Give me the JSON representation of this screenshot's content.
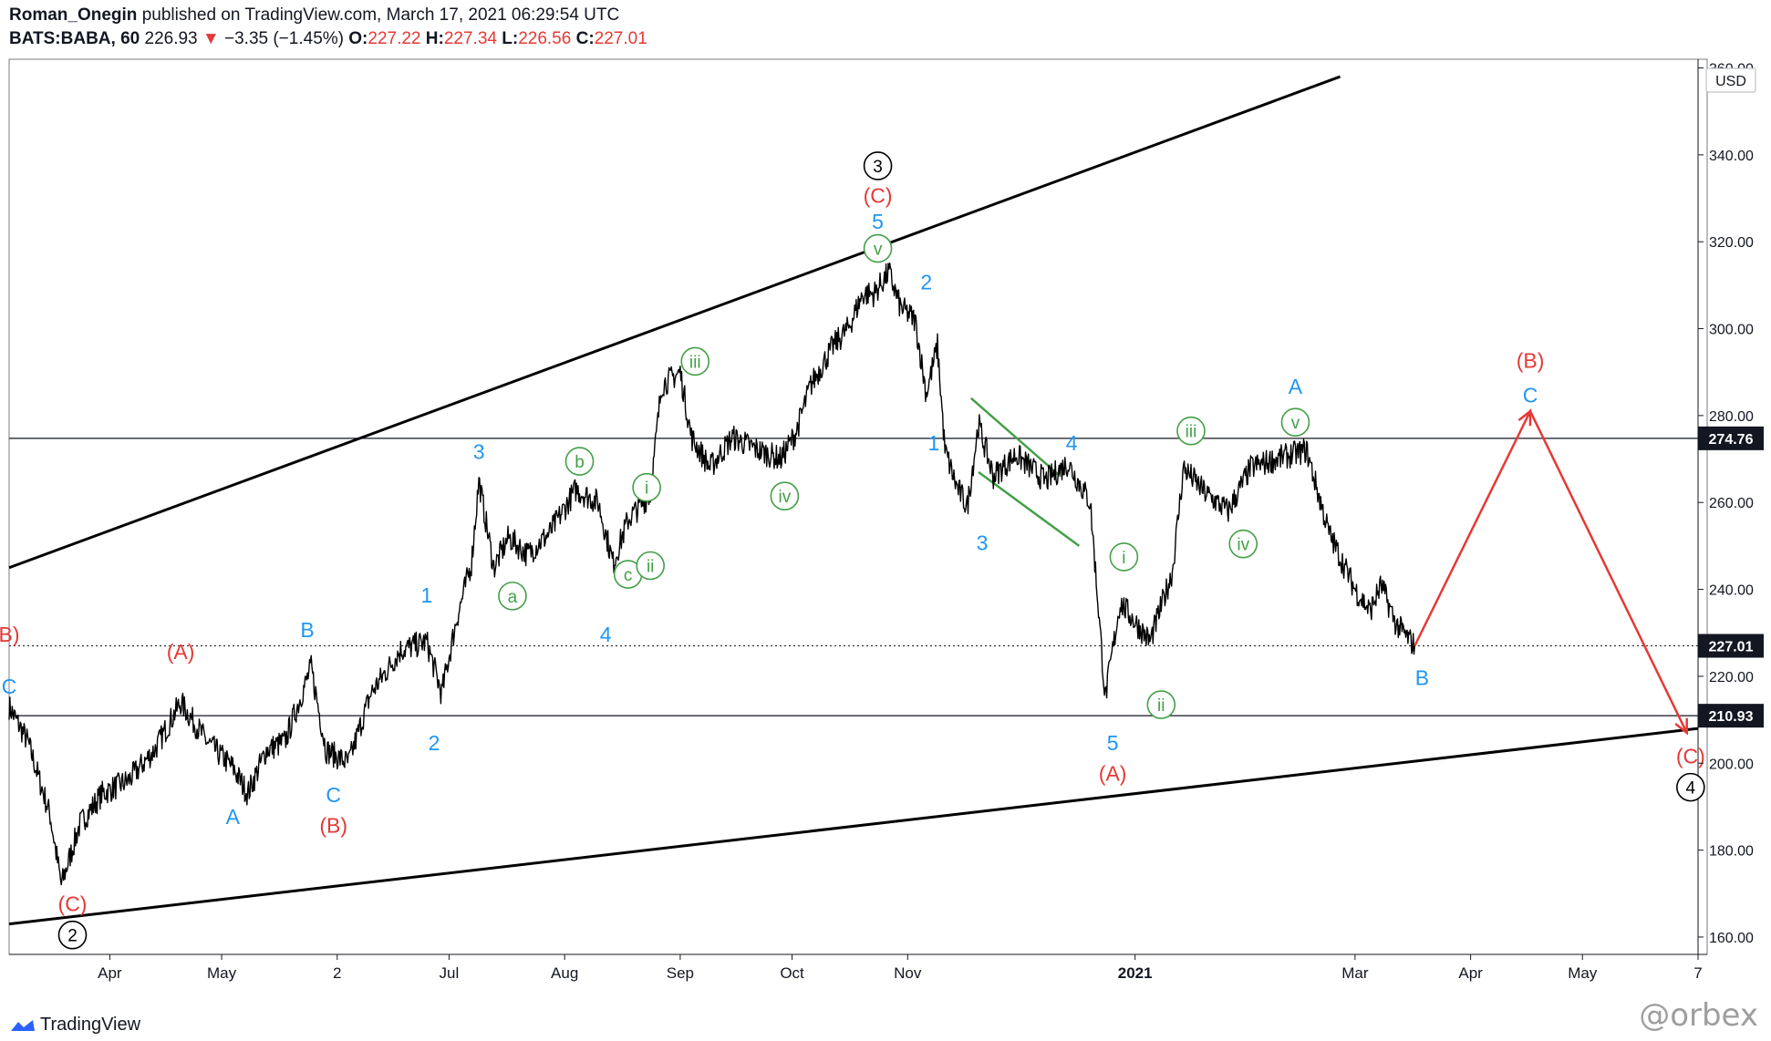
{
  "header": {
    "author": "Roman_Onegin",
    "published_text": "published on TradingView.com, March 17, 2021 06:29:54 UTC",
    "symbol": "BATS:BABA, 60",
    "last": "226.93",
    "change": "−3.35 (−1.45%)",
    "o_label": "O:",
    "o": "227.22",
    "h_label": "H:",
    "h": "227.34",
    "l_label": "L:",
    "l": "226.56",
    "c_label": "C:",
    "c": "227.01"
  },
  "footer": {
    "brand": "TradingView",
    "watermark": "@orbex"
  },
  "colors": {
    "red": "#e53935",
    "blue": "#2196f3",
    "green": "#43a047",
    "black": "#000000"
  },
  "chart_data": {
    "type": "line",
    "currency": "USD",
    "y_ticks": [
      160,
      180,
      200,
      220,
      240,
      260,
      280,
      300,
      320,
      340,
      360
    ],
    "y_tick_labels": [
      "160.00",
      "180.00",
      "200.00",
      "220.00",
      "240.00",
      "260.00",
      "280.00",
      "300.00",
      "320.00",
      "340.00",
      "360.00"
    ],
    "ylim": [
      156,
      362
    ],
    "x_ticks": [
      "Apr",
      "May",
      "2",
      "Jul",
      "Aug",
      "Sep",
      "Oct",
      "Nov",
      "2021",
      "Mar",
      "Apr",
      "May",
      "7"
    ],
    "x_tick_dates": [
      "2020-04-01",
      "2020-05-01",
      "2020-06-01",
      "2020-07-01",
      "2020-08-01",
      "2020-09-01",
      "2020-10-01",
      "2020-11-01",
      "2021-01-01",
      "2021-03-01",
      "2021-04-01",
      "2021-05-01",
      "2021-06-01"
    ],
    "xlim": [
      "2020-03-05",
      "2021-06-01"
    ],
    "price_levels": [
      {
        "value": 274.76,
        "label": "274.76",
        "style": "solid"
      },
      {
        "value": 227.01,
        "label": "227.01",
        "style": "dotted"
      },
      {
        "value": 210.93,
        "label": "210.93",
        "style": "solid"
      }
    ],
    "price_series": [
      [
        "2020-03-05",
        213
      ],
      [
        "2020-03-10",
        205
      ],
      [
        "2020-03-16",
        188
      ],
      [
        "2020-03-19",
        172
      ],
      [
        "2020-03-24",
        186
      ],
      [
        "2020-03-30",
        193
      ],
      [
        "2020-04-06",
        196
      ],
      [
        "2020-04-13",
        203
      ],
      [
        "2020-04-20",
        214
      ],
      [
        "2020-04-27",
        205
      ],
      [
        "2020-05-04",
        199
      ],
      [
        "2020-05-08",
        193
      ],
      [
        "2020-05-13",
        203
      ],
      [
        "2020-05-18",
        205
      ],
      [
        "2020-05-25",
        222
      ],
      [
        "2020-05-29",
        203
      ],
      [
        "2020-06-04",
        200
      ],
      [
        "2020-06-10",
        216
      ],
      [
        "2020-06-18",
        226
      ],
      [
        "2020-06-25",
        228
      ],
      [
        "2020-06-29",
        216
      ],
      [
        "2020-07-03",
        233
      ],
      [
        "2020-07-07",
        246
      ],
      [
        "2020-07-09",
        265
      ],
      [
        "2020-07-13",
        245
      ],
      [
        "2020-07-17",
        252
      ],
      [
        "2020-07-22",
        248
      ],
      [
        "2020-07-28",
        253
      ],
      [
        "2020-08-04",
        263
      ],
      [
        "2020-08-10",
        260
      ],
      [
        "2020-08-14",
        246
      ],
      [
        "2020-08-18",
        256
      ],
      [
        "2020-08-24",
        262
      ],
      [
        "2020-08-27",
        287
      ],
      [
        "2020-09-01",
        290
      ],
      [
        "2020-09-04",
        275
      ],
      [
        "2020-09-09",
        268
      ],
      [
        "2020-09-15",
        275
      ],
      [
        "2020-09-22",
        272
      ],
      [
        "2020-09-28",
        270
      ],
      [
        "2020-10-02",
        276
      ],
      [
        "2020-10-06",
        287
      ],
      [
        "2020-10-12",
        296
      ],
      [
        "2020-10-16",
        300
      ],
      [
        "2020-10-20",
        308
      ],
      [
        "2020-10-23",
        308
      ],
      [
        "2020-10-27",
        313
      ],
      [
        "2020-10-30",
        305
      ],
      [
        "2020-11-03",
        302
      ],
      [
        "2020-11-06",
        285
      ],
      [
        "2020-11-09",
        296
      ],
      [
        "2020-11-11",
        272
      ],
      [
        "2020-11-14",
        264
      ],
      [
        "2020-11-17",
        259
      ],
      [
        "2020-11-20",
        278
      ],
      [
        "2020-11-24",
        266
      ],
      [
        "2020-11-30",
        271
      ],
      [
        "2020-12-08",
        265
      ],
      [
        "2020-12-14",
        269
      ],
      [
        "2020-12-20",
        260
      ],
      [
        "2020-12-24",
        215
      ],
      [
        "2020-12-28",
        237
      ],
      [
        "2021-01-05",
        228
      ],
      [
        "2021-01-11",
        244
      ],
      [
        "2021-01-14",
        268
      ],
      [
        "2021-01-20",
        262
      ],
      [
        "2021-01-26",
        258
      ],
      [
        "2021-02-01",
        268
      ],
      [
        "2021-02-08",
        270
      ],
      [
        "2021-02-16",
        272
      ],
      [
        "2021-02-22",
        253
      ],
      [
        "2021-03-01",
        240
      ],
      [
        "2021-03-05",
        235
      ],
      [
        "2021-03-08",
        241
      ],
      [
        "2021-03-12",
        232
      ],
      [
        "2021-03-17",
        227
      ]
    ],
    "trendlines": [
      {
        "name": "upper-channel",
        "color": "#000000",
        "from": [
          "2020-03-05",
          245
        ],
        "to": [
          "2021-02-25",
          358
        ]
      },
      {
        "name": "lower-channel",
        "color": "#000000",
        "from": [
          "2020-03-05",
          163
        ],
        "to": [
          "2021-06-01",
          208
        ]
      },
      {
        "name": "wedge-top",
        "color": "#43a047",
        "from": [
          "2020-11-18",
          284
        ],
        "to": [
          "2020-12-12",
          266
        ]
      },
      {
        "name": "wedge-bottom",
        "color": "#43a047",
        "from": [
          "2020-11-20",
          267
        ],
        "to": [
          "2020-12-17",
          250
        ]
      }
    ],
    "projection": [
      [
        "2021-03-17",
        227
      ],
      [
        "2021-04-17",
        281
      ],
      [
        "2021-05-29",
        207
      ]
    ],
    "wave_labels": [
      {
        "text": "B)",
        "date": "2020-03-05",
        "price": 228,
        "color": "red",
        "circle": false
      },
      {
        "text": "C",
        "date": "2020-03-05",
        "price": 216,
        "color": "blue",
        "circle": false
      },
      {
        "text": "(C)",
        "date": "2020-03-22",
        "price": 166,
        "color": "red",
        "circle": false
      },
      {
        "text": "2",
        "date": "2020-03-22",
        "price": 159,
        "color": "black",
        "circle": true
      },
      {
        "text": "(A)",
        "date": "2020-04-20",
        "price": 224,
        "color": "red",
        "circle": false
      },
      {
        "text": "A",
        "date": "2020-05-04",
        "price": 186,
        "color": "blue",
        "circle": false
      },
      {
        "text": "B",
        "date": "2020-05-24",
        "price": 229,
        "color": "blue",
        "circle": false
      },
      {
        "text": "C",
        "date": "2020-05-31",
        "price": 191,
        "color": "blue",
        "circle": false
      },
      {
        "text": "(B)",
        "date": "2020-05-31",
        "price": 184,
        "color": "red",
        "circle": false
      },
      {
        "text": "1",
        "date": "2020-06-25",
        "price": 237,
        "color": "blue",
        "circle": false
      },
      {
        "text": "2",
        "date": "2020-06-27",
        "price": 203,
        "color": "blue",
        "circle": false
      },
      {
        "text": "3",
        "date": "2020-07-09",
        "price": 270,
        "color": "blue",
        "circle": false
      },
      {
        "text": "a",
        "date": "2020-07-18",
        "price": 237,
        "color": "green",
        "circle": true
      },
      {
        "text": "b",
        "date": "2020-08-05",
        "price": 268,
        "color": "green",
        "circle": true
      },
      {
        "text": "4",
        "date": "2020-08-12",
        "price": 228,
        "color": "blue",
        "circle": false
      },
      {
        "text": "c",
        "date": "2020-08-18",
        "price": 242,
        "color": "green",
        "circle": true
      },
      {
        "text": "i",
        "date": "2020-08-23",
        "price": 262,
        "color": "green",
        "circle": true
      },
      {
        "text": "ii",
        "date": "2020-08-24",
        "price": 244,
        "color": "green",
        "circle": true
      },
      {
        "text": "iii",
        "date": "2020-09-05",
        "price": 291,
        "color": "green",
        "circle": true
      },
      {
        "text": "iv",
        "date": "2020-09-29",
        "price": 260,
        "color": "green",
        "circle": true
      },
      {
        "text": "v",
        "date": "2020-10-24",
        "price": 317,
        "color": "green",
        "circle": true
      },
      {
        "text": "5",
        "date": "2020-10-24",
        "price": 323,
        "color": "blue",
        "circle": false
      },
      {
        "text": "(C)",
        "date": "2020-10-24",
        "price": 329,
        "color": "red",
        "circle": false
      },
      {
        "text": "3",
        "date": "2020-10-24",
        "price": 336,
        "color": "black",
        "circle": true
      },
      {
        "text": "2",
        "date": "2020-11-06",
        "price": 309,
        "color": "blue",
        "circle": false
      },
      {
        "text": "1",
        "date": "2020-11-08",
        "price": 272,
        "color": "blue",
        "circle": false
      },
      {
        "text": "3",
        "date": "2020-11-21",
        "price": 249,
        "color": "blue",
        "circle": false
      },
      {
        "text": "4",
        "date": "2020-12-15",
        "price": 272,
        "color": "blue",
        "circle": false
      },
      {
        "text": "i",
        "date": "2020-12-29",
        "price": 246,
        "color": "green",
        "circle": true
      },
      {
        "text": "5",
        "date": "2020-12-26",
        "price": 203,
        "color": "blue",
        "circle": false
      },
      {
        "text": "(A)",
        "date": "2020-12-26",
        "price": 196,
        "color": "red",
        "circle": false
      },
      {
        "text": "ii",
        "date": "2021-01-08",
        "price": 212,
        "color": "green",
        "circle": true
      },
      {
        "text": "iii",
        "date": "2021-01-16",
        "price": 275,
        "color": "green",
        "circle": true
      },
      {
        "text": "iv",
        "date": "2021-01-30",
        "price": 249,
        "color": "green",
        "circle": true
      },
      {
        "text": "v",
        "date": "2021-02-13",
        "price": 277,
        "color": "green",
        "circle": true
      },
      {
        "text": "A",
        "date": "2021-02-13",
        "price": 285,
        "color": "blue",
        "circle": false
      },
      {
        "text": "B",
        "date": "2021-03-19",
        "price": 218,
        "color": "blue",
        "circle": false
      },
      {
        "text": "C",
        "date": "2021-04-17",
        "price": 283,
        "color": "blue",
        "circle": false
      },
      {
        "text": "(B)",
        "date": "2021-04-17",
        "price": 291,
        "color": "red",
        "circle": false
      },
      {
        "text": "(C)",
        "date": "2021-05-30",
        "price": 200,
        "color": "red",
        "circle": false
      },
      {
        "text": "4",
        "date": "2021-05-30",
        "price": 193,
        "color": "black",
        "circle": true
      }
    ]
  }
}
